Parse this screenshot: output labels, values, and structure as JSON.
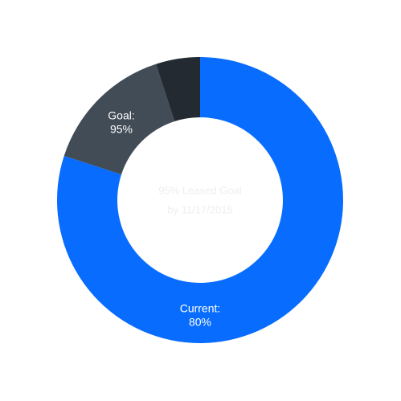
{
  "chart_data": {
    "type": "donut",
    "categories": [
      "Current:",
      "Goal:",
      null
    ],
    "values": [
      80,
      15,
      5
    ],
    "value_labels": [
      "80%",
      null,
      null
    ],
    "colors": [
      "#086cff",
      "#414c57",
      "#232a32"
    ],
    "goal_label": "95%",
    "center_text": [
      "95% Leased Goal",
      "by 11/17/2015"
    ]
  }
}
